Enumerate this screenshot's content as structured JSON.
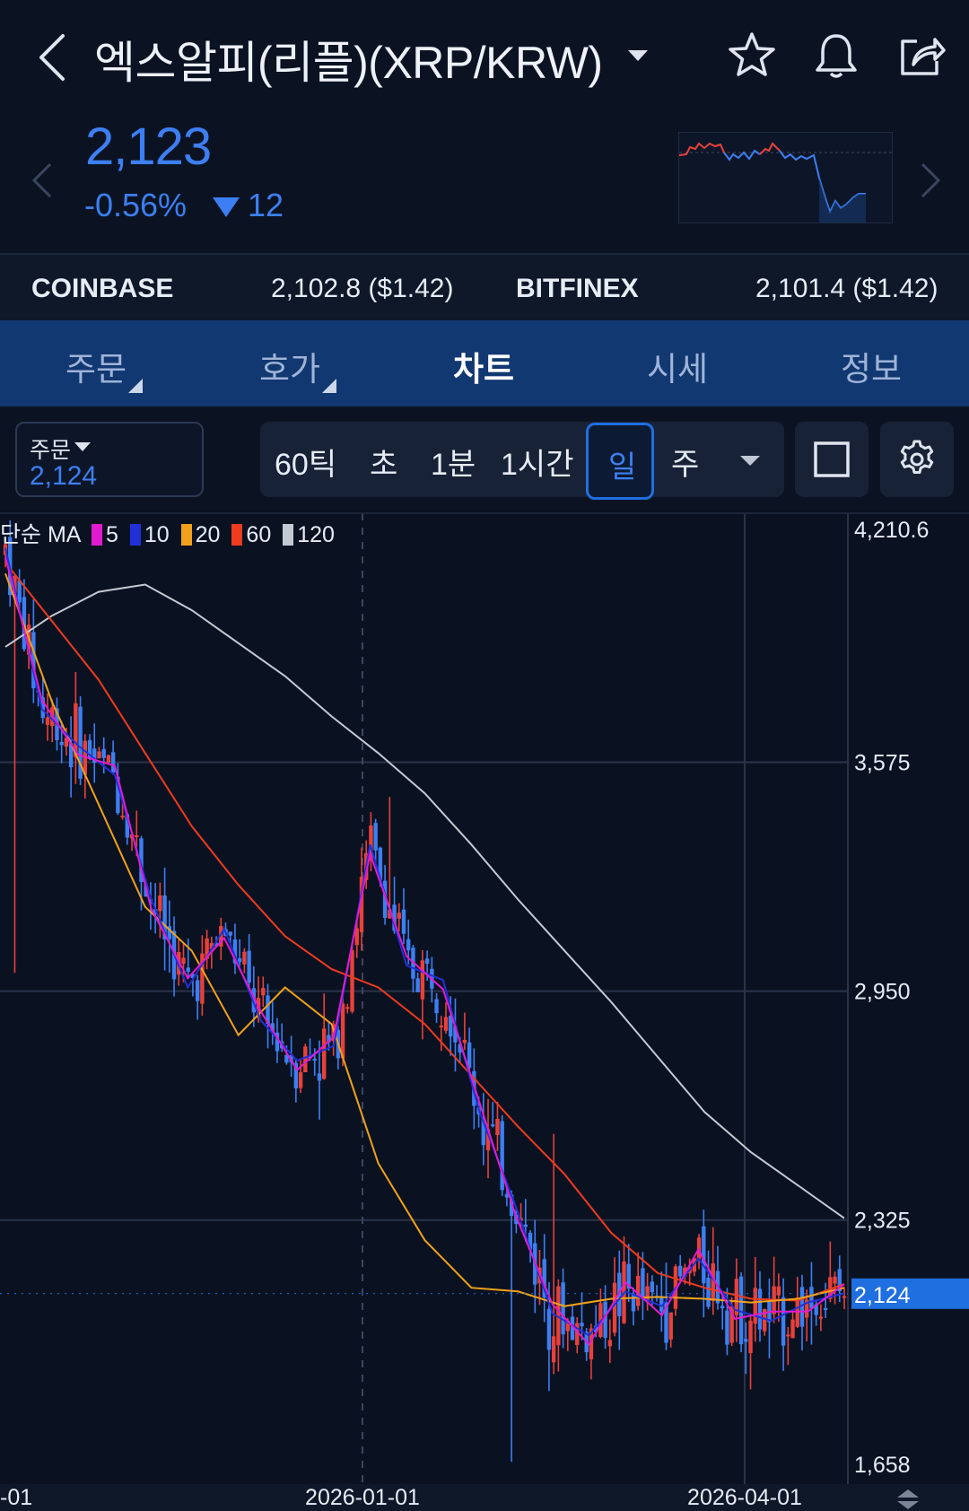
{
  "header": {
    "title": "엑스알피(리플)(XRP/KRW)",
    "icons": [
      "back-icon",
      "star-icon",
      "bell-icon",
      "share-icon"
    ]
  },
  "ticker": {
    "price": "2,123",
    "change_pct": "-0.56%",
    "change_abs": "12",
    "direction": "down",
    "color_down": "#3d7ff2",
    "color_up": "#e8413a"
  },
  "exchanges": [
    {
      "name": "COINBASE",
      "value": "2,102.8 ($1.42)"
    },
    {
      "name": "BITFINEX",
      "value": "2,101.4 ($1.42)"
    }
  ],
  "tabs": [
    {
      "label": "주문",
      "active": false
    },
    {
      "label": "호가",
      "active": false
    },
    {
      "label": "차트",
      "active": true
    },
    {
      "label": "시세",
      "active": false
    },
    {
      "label": "정보",
      "active": false
    }
  ],
  "toolbar": {
    "order_label": "주문",
    "order_value": "2,124",
    "timeframes": [
      "60틱",
      "초",
      "1분",
      "1시간",
      "일",
      "주"
    ],
    "selected_timeframe": "일"
  },
  "chart_data": {
    "type": "candlestick",
    "legend_label": "단순 MA",
    "ma_series": [
      {
        "name": "5",
        "color": "#e21bd0"
      },
      {
        "name": "10",
        "color": "#2230d8"
      },
      {
        "name": "20",
        "color": "#f0a21a"
      },
      {
        "name": "60",
        "color": "#ef3b1e"
      },
      {
        "name": "120",
        "color": "#c5c9d2"
      }
    ],
    "y_ticks": [
      "4,210.6",
      "3,575",
      "2,950",
      "2,325",
      "1,658"
    ],
    "ylim": [
      1658,
      4210.6
    ],
    "x_ticks": [
      "-01",
      "2026-01-01",
      "2026-04-01"
    ],
    "current_value": "2,124",
    "candle_up_color": "#e8413a",
    "candle_down_color": "#3d7ff2",
    "ma120": [
      3890,
      3975,
      4040,
      4060,
      3990,
      3900,
      3810,
      3700,
      3600,
      3490,
      3350,
      3200,
      3060,
      2920,
      2770,
      2620,
      2510,
      2420,
      2330
    ],
    "ma60": [
      4120,
      3960,
      3800,
      3600,
      3400,
      3240,
      3100,
      3010,
      2960,
      2860,
      2720,
      2580,
      2450,
      2290,
      2180,
      2140,
      2110,
      2105,
      2150
    ],
    "ma20": [
      4090,
      3740,
      3460,
      3180,
      3060,
      2830,
      2960,
      2860,
      2480,
      2270,
      2140,
      2130,
      2090,
      2110,
      2115,
      2110,
      2100,
      2110,
      2140
    ],
    "closes": [
      4160,
      3720,
      3620,
      3540,
      3200,
      2960,
      3120,
      2870,
      2760,
      2800,
      3350,
      3020,
      2980,
      2620,
      2360,
      2070,
      2010,
      2130,
      2090,
      2220,
      2080,
      2050,
      2100,
      2125
    ]
  }
}
